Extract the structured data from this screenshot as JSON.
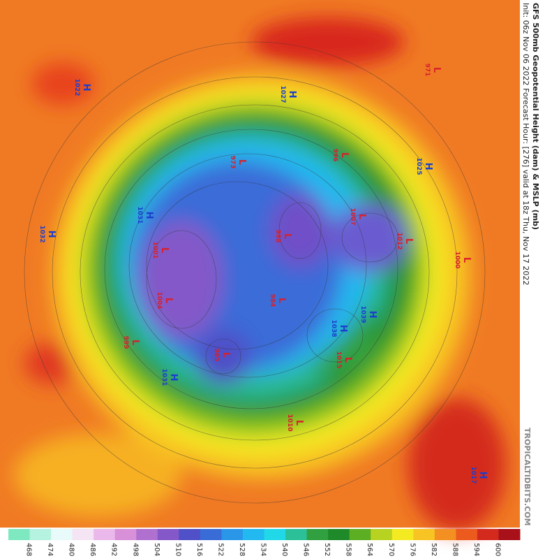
{
  "header": {
    "title": "GFS 500mb Geopotential Height (dam) & MSLP (mb)",
    "subtitle": "Init: 06z Nov 06 2022   Forecast Hour: [276]   valid at 18z Thu, Nov 17 2022",
    "watermark": "TROPICALTIDBITS.COM"
  },
  "centers": [
    {
      "letter": "H",
      "pressure": 1022
    },
    {
      "letter": "H",
      "pressure": 1027
    },
    {
      "letter": "L",
      "pressure": 996
    },
    {
      "letter": "L",
      "pressure": 971
    },
    {
      "letter": "L",
      "pressure": 973
    },
    {
      "letter": "H",
      "pressure": 1025
    },
    {
      "letter": "H",
      "pressure": 1032
    },
    {
      "letter": "H",
      "pressure": 1031
    },
    {
      "letter": "L",
      "pressure": 1001
    },
    {
      "letter": "L",
      "pressure": 998
    },
    {
      "letter": "L",
      "pressure": 1007
    },
    {
      "letter": "L",
      "pressure": 1012
    },
    {
      "letter": "L",
      "pressure": 1000
    },
    {
      "letter": "L",
      "pressure": 1004
    },
    {
      "letter": "L",
      "pressure": 984
    },
    {
      "letter": "H",
      "pressure": 1038
    },
    {
      "letter": "H",
      "pressure": 1039
    },
    {
      "letter": "L",
      "pressure": 999
    },
    {
      "letter": "L",
      "pressure": 965
    },
    {
      "letter": "L",
      "pressure": 1015
    },
    {
      "letter": "H",
      "pressure": 1031
    },
    {
      "letter": "L",
      "pressure": 1010
    },
    {
      "letter": "H",
      "pressure": 1017
    }
  ],
  "colorbar": {
    "ticks": [
      468,
      474,
      480,
      486,
      492,
      498,
      504,
      510,
      516,
      522,
      528,
      534,
      540,
      546,
      552,
      558,
      564,
      570,
      576,
      582,
      588,
      594,
      600
    ],
    "colors": [
      "#7ee8c0",
      "#b6f2e0",
      "#e8fafa",
      "#f4e4f4",
      "#eab8ea",
      "#d890d8",
      "#b070d0",
      "#8458c8",
      "#5050c8",
      "#3a6cd8",
      "#2a96e8",
      "#22b8f0",
      "#20d8e8",
      "#2cc098",
      "#30a040",
      "#1e8a2a",
      "#5cae22",
      "#b8d222",
      "#f4ea22",
      "#f8c424",
      "#f49022",
      "#ec5a1e",
      "#d42a1e",
      "#a8101a"
    ]
  }
}
